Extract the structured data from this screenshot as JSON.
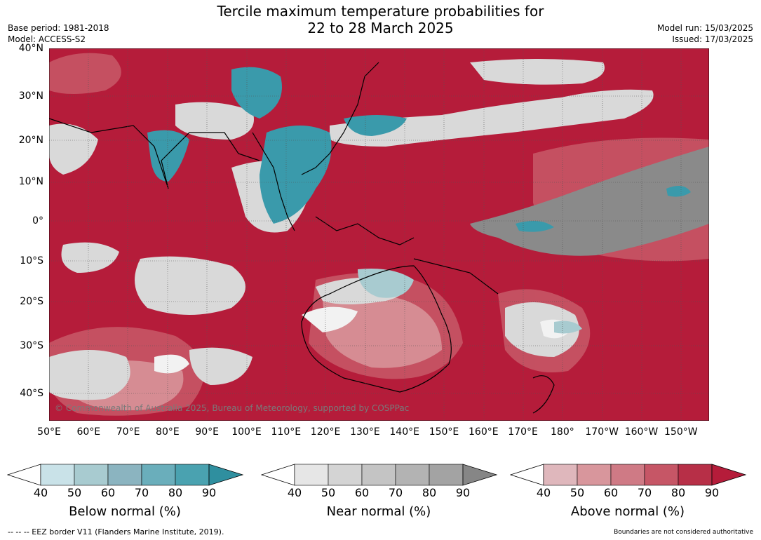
{
  "header": {
    "title_line1": "Tercile maximum temperature probabilities for",
    "title_line2": "22 to 28 March 2025",
    "base_period": "Base period: 1981-2018",
    "model": "Model: ACCESS-S2",
    "model_run": "Model run: 15/03/2025",
    "issued": "Issued: 17/03/2025"
  },
  "map": {
    "lat_labels": [
      "40°N",
      "30°N",
      "20°N",
      "10°N",
      "0°",
      "10°S",
      "20°S",
      "30°S",
      "40°S"
    ],
    "lon_labels": [
      "50°E",
      "60°E",
      "70°E",
      "80°E",
      "90°E",
      "100°E",
      "110°E",
      "120°E",
      "130°E",
      "140°E",
      "150°E",
      "160°E",
      "170°E",
      "180°",
      "170°W",
      "160°W",
      "150°W"
    ],
    "copyright": "© Commonwealth of Australia 2025, Bureau of Meteorology, supported by COSPPac",
    "colors": {
      "above_dominant": "#b51c3a",
      "near_normal": "#d9d9d9",
      "below_normal": "#3a9aab",
      "near_dark": "#8a8a8a"
    }
  },
  "colorbars": [
    {
      "title": "Below normal (%)",
      "ticks": [
        "40",
        "50",
        "60",
        "70",
        "80",
        "90"
      ],
      "colors": [
        "#c9e2e8",
        "#a8cbd0",
        "#8bb4c0",
        "#6aaebb",
        "#4aa2b0",
        "#2f8f9f"
      ]
    },
    {
      "title": "Near normal (%)",
      "ticks": [
        "40",
        "50",
        "60",
        "70",
        "80",
        "90"
      ],
      "colors": [
        "#e6e6e6",
        "#d4d4d4",
        "#c4c4c4",
        "#b3b3b3",
        "#a3a3a3",
        "#868686"
      ]
    },
    {
      "title": "Above normal (%)",
      "ticks": [
        "40",
        "50",
        "60",
        "70",
        "80",
        "90"
      ],
      "colors": [
        "#dfb7bc",
        "#d8969c",
        "#cf7a85",
        "#c65666",
        "#b72f47",
        "#b51c3a"
      ]
    }
  ],
  "footer": {
    "eez_note": "--  --  -- EEZ border V11 (Flanders Marine Institute, 2019).",
    "disclaimer": "Boundaries are not considered authoritative"
  }
}
